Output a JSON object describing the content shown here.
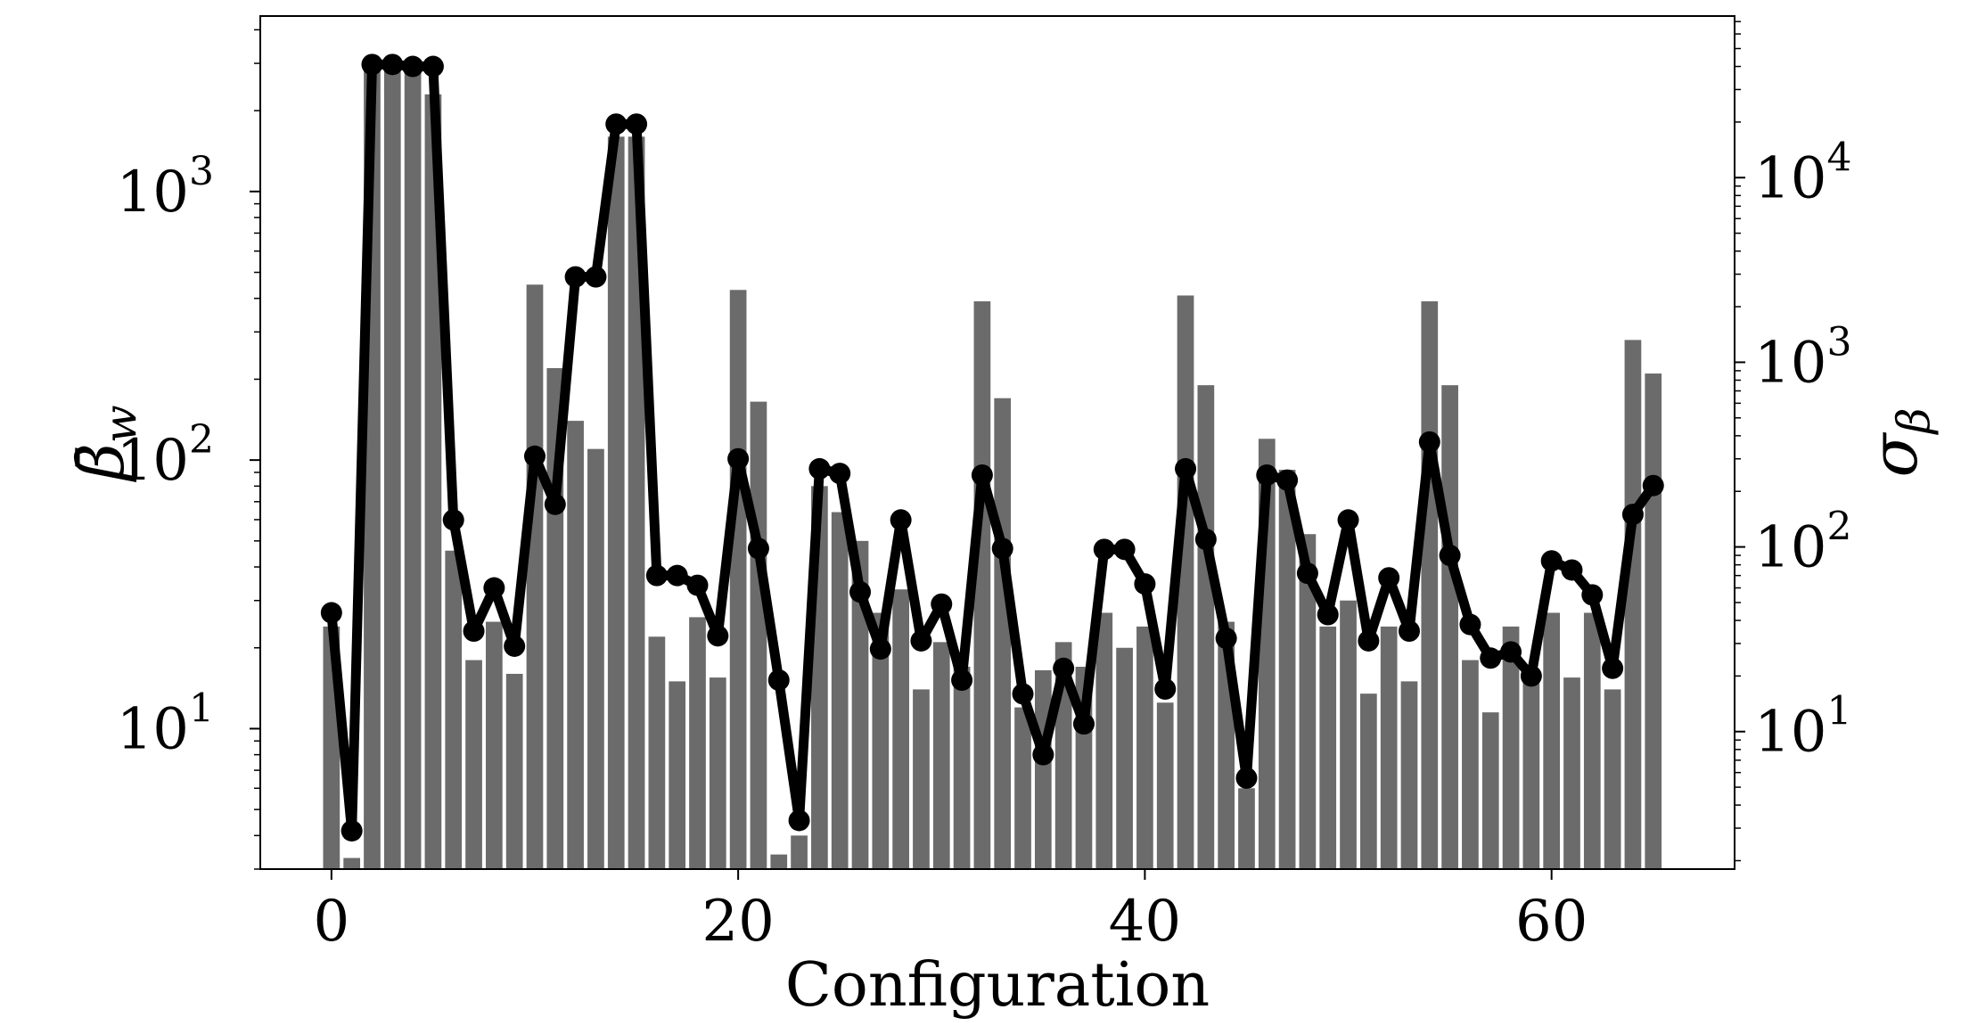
{
  "chart_data": {
    "type": "bar",
    "xlabel": "Configuration",
    "ylabel_left": {
      "symbol": "β̄",
      "sub": "w"
    },
    "ylabel_right": {
      "symbol": "σ",
      "sub": "β"
    },
    "x": [
      0,
      1,
      2,
      3,
      4,
      5,
      6,
      7,
      8,
      9,
      10,
      11,
      12,
      13,
      14,
      15,
      16,
      17,
      18,
      19,
      20,
      21,
      22,
      23,
      24,
      25,
      26,
      27,
      28,
      29,
      30,
      31,
      32,
      33,
      34,
      35,
      36,
      37,
      38,
      39,
      40,
      41,
      42,
      43,
      44,
      45,
      46,
      47,
      48,
      49,
      50,
      51,
      52,
      53,
      54,
      55,
      56,
      57,
      58,
      59,
      60,
      61,
      62,
      63,
      64,
      65
    ],
    "xlim": [
      -3.5,
      69
    ],
    "xticks": [
      0,
      20,
      40,
      60
    ],
    "left_axis": {
      "scale": "log",
      "ylim": [
        3,
        4500
      ],
      "ticks": [
        {
          "base": "10",
          "exp": "1"
        },
        {
          "base": "10",
          "exp": "2"
        },
        {
          "base": "10",
          "exp": "3"
        }
      ]
    },
    "right_axis": {
      "scale": "log",
      "ylim": [
        1.8,
        75000
      ],
      "ticks": [
        {
          "base": "10",
          "exp": "1"
        },
        {
          "base": "10",
          "exp": "2"
        },
        {
          "base": "10",
          "exp": "3"
        },
        {
          "base": "10",
          "exp": "4"
        }
      ]
    },
    "bars": {
      "axis": "left",
      "color": "#6b6b6b",
      "values": [
        24,
        3.3,
        2900,
        2800,
        2800,
        2300,
        46,
        18,
        25,
        16,
        450,
        220,
        140,
        110,
        1600,
        1600,
        22,
        15,
        26,
        15.5,
        430,
        165,
        3.4,
        4,
        80,
        64,
        50,
        27,
        33,
        14,
        21,
        17,
        390,
        170,
        12,
        16.5,
        21,
        17,
        27,
        20,
        24,
        12.5,
        410,
        190,
        25,
        6,
        120,
        92,
        53,
        24,
        30,
        13.5,
        24,
        15,
        390,
        190,
        18,
        11.5,
        24,
        16,
        27,
        15.5,
        27,
        14,
        280,
        210
      ]
    },
    "line": {
      "axis": "right",
      "color": "#000000",
      "values": [
        44,
        2.9,
        41000,
        41000,
        40000,
        40000,
        140,
        35,
        60,
        29,
        310,
        170,
        2900,
        2900,
        19500,
        19500,
        70,
        70,
        62,
        33,
        300,
        98,
        19,
        3.3,
        265,
        250,
        57,
        28,
        140,
        31,
        49,
        19,
        245,
        98,
        16,
        7.5,
        22,
        11,
        97,
        97,
        63,
        17,
        265,
        110,
        32,
        5.6,
        245,
        230,
        72,
        43,
        140,
        31,
        68,
        35,
        370,
        90,
        38,
        25,
        27,
        20,
        84,
        75,
        55,
        22,
        150,
        215
      ]
    }
  }
}
